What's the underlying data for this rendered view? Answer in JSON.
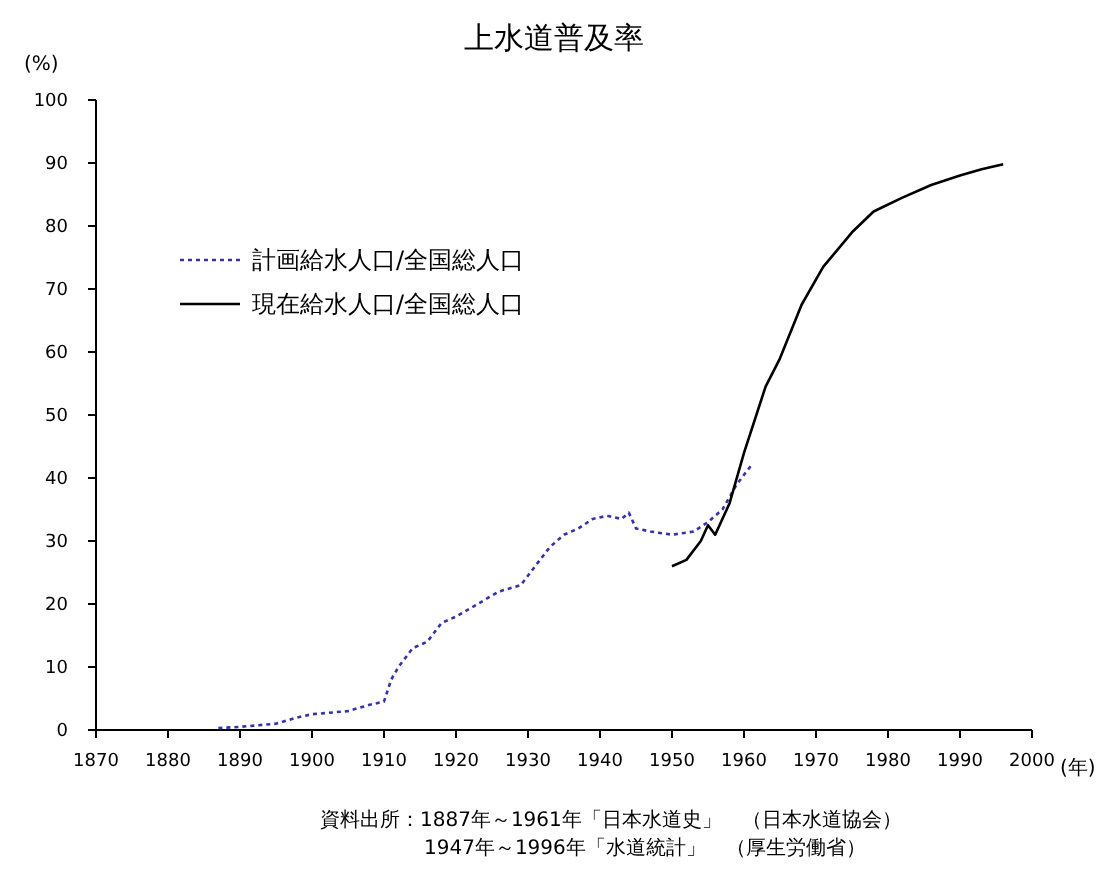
{
  "chart_data": {
    "type": "line",
    "title": "上水道普及率",
    "ylabel": "(%)",
    "xlabel": "(年)",
    "xlim": [
      1870,
      2000
    ],
    "xticks": [
      1870,
      1880,
      1890,
      1900,
      1910,
      1920,
      1930,
      1940,
      1950,
      1960,
      1970,
      1980,
      1990,
      2000
    ],
    "ylim": [
      0,
      100
    ],
    "yticks": [
      0,
      10,
      20,
      30,
      40,
      50,
      60,
      70,
      80,
      90,
      100
    ],
    "grid": false,
    "legend": "top left",
    "marker": "none",
    "series": [
      {
        "name": "計画給水人口/全国総人口",
        "color": "#3333aa",
        "line_style": "dotted",
        "x": [
          1887,
          1890,
          1895,
          1898,
          1900,
          1905,
          1908,
          1910,
          1911,
          1912,
          1914,
          1916,
          1918,
          1920,
          1923,
          1926,
          1929,
          1931,
          1933,
          1935,
          1937,
          1939,
          1941,
          1943,
          1944,
          1945,
          1947,
          1950,
          1953,
          1955,
          1957,
          1959,
          1961
        ],
        "values": [
          0.3,
          0.5,
          1,
          2,
          2.5,
          3,
          4,
          4.5,
          8,
          10,
          13,
          14,
          17,
          18,
          20,
          22,
          23,
          26,
          29,
          31,
          32,
          33.5,
          34,
          33.5,
          34.5,
          32,
          31.5,
          31,
          31.5,
          33,
          35,
          39,
          42
        ]
      },
      {
        "name": "現在給水人口/全国総人口",
        "color": "#000000",
        "line_style": "solid",
        "x": [
          1950,
          1952,
          1954,
          1955,
          1956,
          1958,
          1960,
          1963,
          1965,
          1968,
          1971,
          1975,
          1978,
          1982,
          1986,
          1990,
          1993,
          1996
        ],
        "values": [
          26,
          27,
          30,
          32.5,
          31,
          36,
          44,
          54.5,
          59,
          67.5,
          73.5,
          79,
          82.3,
          84.5,
          86.5,
          88,
          89,
          89.8
        ]
      }
    ],
    "annotations": [
      "資料出所：1887年～1961年「日本水道史」　（日本水道協会）",
      "1947年～1996年「水道統計」　（厚生労働省）"
    ]
  }
}
